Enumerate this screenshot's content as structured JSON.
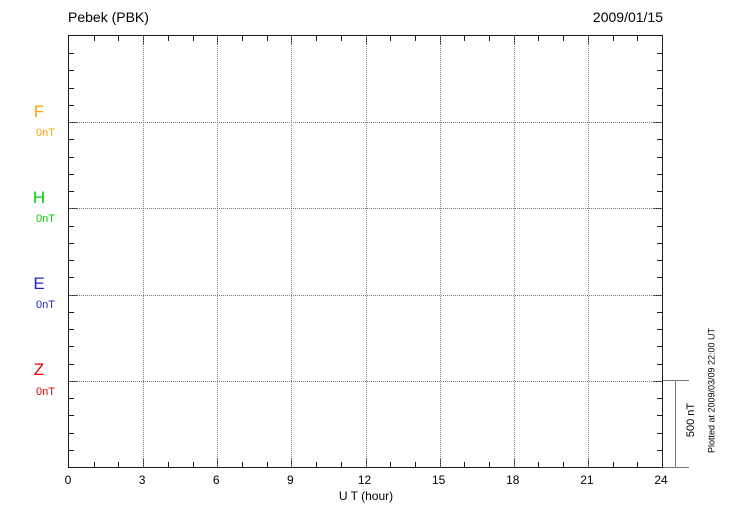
{
  "header": {
    "title": "Pebek (PBK)",
    "date": "2009/01/15"
  },
  "axes": {
    "x_label": "U T (hour)",
    "x_ticks": [
      "0",
      "3",
      "6",
      "9",
      "12",
      "15",
      "18",
      "21",
      "24"
    ]
  },
  "channels": [
    {
      "label": "F",
      "baseline_label": "0nT",
      "color": "#FFA500"
    },
    {
      "label": "H",
      "baseline_label": "0nT",
      "color": "#00CC00"
    },
    {
      "label": "E",
      "baseline_label": "0nT",
      "color": "#2222CC"
    },
    {
      "label": "Z",
      "baseline_label": "0nT",
      "color": "#DD0000"
    }
  ],
  "scale_bar": {
    "label": "500 nT"
  },
  "footer_note": "Plotted at 2009/03/09 22:00 UT",
  "chart_data": {
    "type": "line",
    "title": "Pebek (PBK) magnetogram for 2009/01/15",
    "xlabel": "U T (hour)",
    "x_range": [
      0,
      24
    ],
    "x_tick_step_hours": 3,
    "x_minor_tick_step_hours": 1,
    "y_scale_nT_per_division": 500,
    "y_minor_tick_nT": 100,
    "grid": "dotted vertical lines every 3 hours; dotted horizontal line at each component 0 nT baseline",
    "legend_position": "left margin (component letters F, H, E, Z with 0nT baseline labels)",
    "series": [
      {
        "name": "F",
        "baseline_nT": 0,
        "color": "#FFA500",
        "x": [],
        "values": []
      },
      {
        "name": "H",
        "baseline_nT": 0,
        "color": "#00CC00",
        "x": [],
        "values": []
      },
      {
        "name": "E",
        "baseline_nT": 0,
        "color": "#2222CC",
        "x": [],
        "values": []
      },
      {
        "name": "Z",
        "baseline_nT": 0,
        "color": "#DD0000",
        "x": [],
        "values": []
      }
    ],
    "note": "No trace data is drawn for this day; the plot shows only empty axes with 0 nT baselines and a 500 nT scale bar"
  }
}
